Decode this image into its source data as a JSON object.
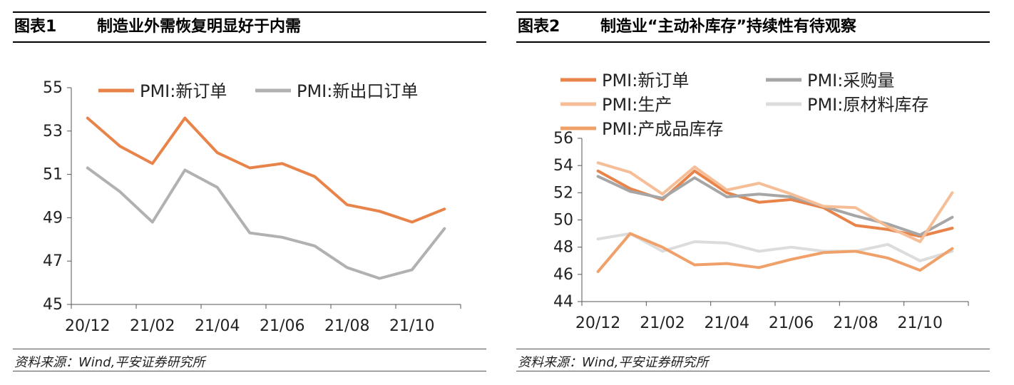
{
  "panels": [
    {
      "figure_no": "图表1",
      "title": "制造业外需恢复明显好于内需",
      "source": "资料来源：Wind,平安证券研究所"
    },
    {
      "figure_no": "图表2",
      "title": "制造业“主动补库存”持续性有待观察",
      "source": "资料来源：Wind,平安证券研究所"
    }
  ],
  "chart_data": [
    {
      "type": "line",
      "categories": [
        "20/12",
        "21/01",
        "21/02",
        "21/03",
        "21/04",
        "21/05",
        "21/06",
        "21/07",
        "21/08",
        "21/09",
        "21/10",
        "21/11"
      ],
      "x_tick_labels": [
        "20/12",
        "21/02",
        "21/04",
        "21/06",
        "21/08",
        "21/10"
      ],
      "ylim": [
        45,
        55
      ],
      "y_ticks": [
        45,
        47,
        49,
        51,
        53,
        55
      ],
      "grid": false,
      "legend_position": "top",
      "series": [
        {
          "name": "PMI:新订单",
          "color": "#E8834A",
          "values": [
            53.6,
            52.3,
            51.5,
            53.6,
            52.0,
            51.3,
            51.5,
            50.9,
            49.6,
            49.3,
            48.8,
            49.4
          ]
        },
        {
          "name": "PMI:新出口订单",
          "color": "#B1B1B1",
          "values": [
            51.3,
            50.2,
            48.8,
            51.2,
            50.4,
            48.3,
            48.1,
            47.7,
            46.7,
            46.2,
            46.6,
            48.5
          ]
        }
      ]
    },
    {
      "type": "line",
      "categories": [
        "20/12",
        "21/01",
        "21/02",
        "21/03",
        "21/04",
        "21/05",
        "21/06",
        "21/07",
        "21/08",
        "21/09",
        "21/10",
        "21/11"
      ],
      "x_tick_labels": [
        "20/12",
        "21/02",
        "21/04",
        "21/06",
        "21/08",
        "21/10"
      ],
      "ylim": [
        44,
        56
      ],
      "y_ticks": [
        44,
        46,
        48,
        50,
        52,
        54,
        56
      ],
      "grid": false,
      "legend_position": "top",
      "series": [
        {
          "name": "PMI:新订单",
          "color": "#E8834A",
          "values": [
            53.6,
            52.3,
            51.5,
            53.6,
            52.0,
            51.3,
            51.5,
            50.9,
            49.6,
            49.3,
            48.8,
            49.4
          ]
        },
        {
          "name": "PMI:采购量",
          "color": "#A6A6A6",
          "values": [
            53.2,
            52.1,
            51.6,
            53.1,
            51.7,
            51.9,
            51.7,
            51.0,
            50.3,
            49.7,
            48.9,
            50.2
          ]
        },
        {
          "name": "PMI:生产",
          "color": "#F6BE97",
          "values": [
            54.2,
            53.5,
            51.9,
            53.9,
            52.2,
            52.7,
            51.9,
            51.0,
            50.9,
            49.5,
            48.4,
            52.0
          ]
        },
        {
          "name": "PMI:原材料库存",
          "color": "#DCDCDC",
          "values": [
            48.6,
            49.0,
            47.7,
            48.4,
            48.3,
            47.7,
            48.0,
            47.7,
            47.7,
            48.2,
            47.0,
            47.7
          ]
        },
        {
          "name": "PMI:产成品库存",
          "color": "#F0A069",
          "values": [
            46.2,
            49.0,
            48.0,
            46.7,
            46.8,
            46.5,
            47.1,
            47.6,
            47.7,
            47.2,
            46.3,
            47.9
          ]
        }
      ]
    }
  ]
}
